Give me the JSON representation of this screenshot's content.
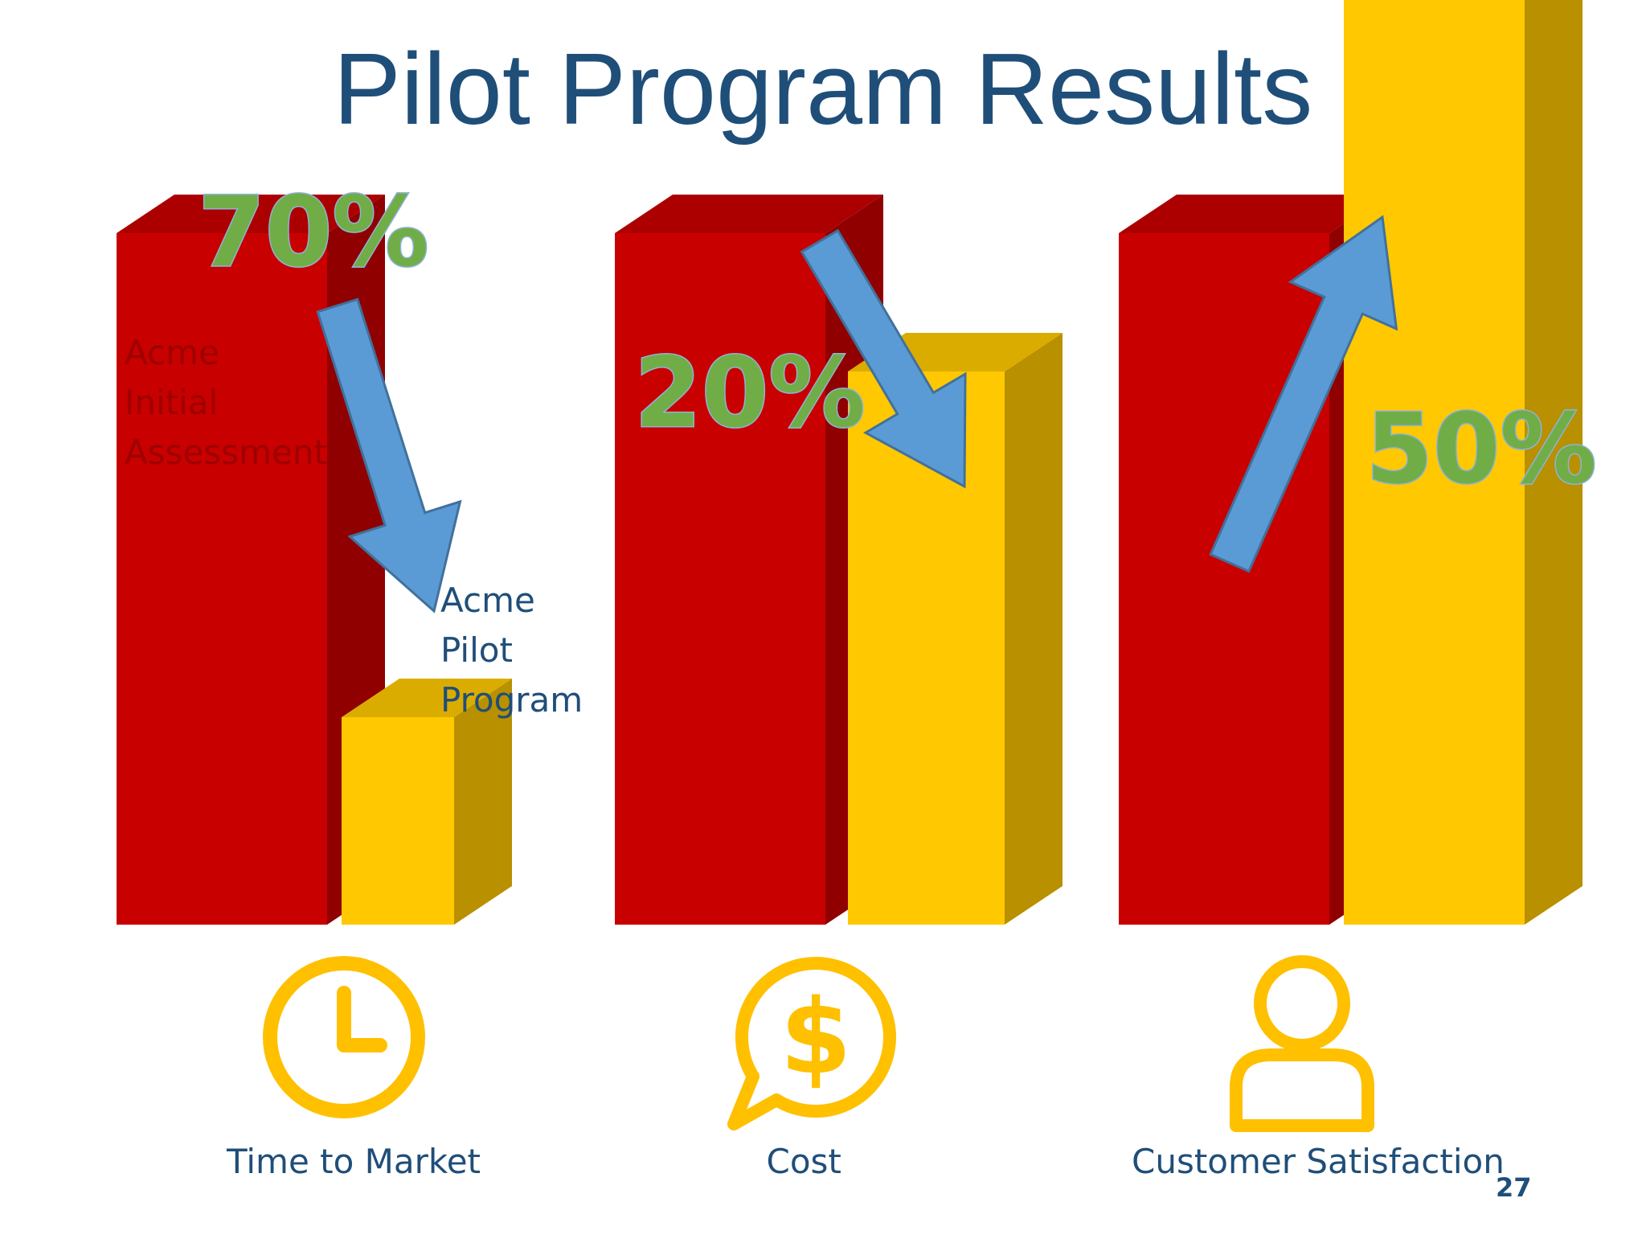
{
  "title": "Pilot Program Results",
  "page_number": "27",
  "legend": {
    "initial": [
      "Acme",
      "Initial",
      "Assessment"
    ],
    "pilot": [
      "Acme",
      "Pilot",
      "Program"
    ]
  },
  "colors": {
    "initial": "#c80000",
    "pilot": "#ffc800",
    "arrow": "#5b9bd5",
    "percent": "#70ad47",
    "icon": "#ffc000",
    "text": "#1f4e79"
  },
  "chart_data": {
    "type": "bar",
    "categories": [
      "Time to Market",
      "Cost",
      "Customer Satisfaction"
    ],
    "series": [
      {
        "name": "Acme Initial Assessment",
        "values": [
          100,
          100,
          100
        ]
      },
      {
        "name": "Acme Pilot Program",
        "values": [
          30,
          80,
          150
        ]
      }
    ],
    "changes": [
      {
        "label": "70%",
        "direction": "down"
      },
      {
        "label": "20%",
        "direction": "down"
      },
      {
        "label": "50%",
        "direction": "up"
      }
    ],
    "icons": [
      "clock-icon",
      "dollar-chat-icon",
      "person-icon"
    ]
  }
}
